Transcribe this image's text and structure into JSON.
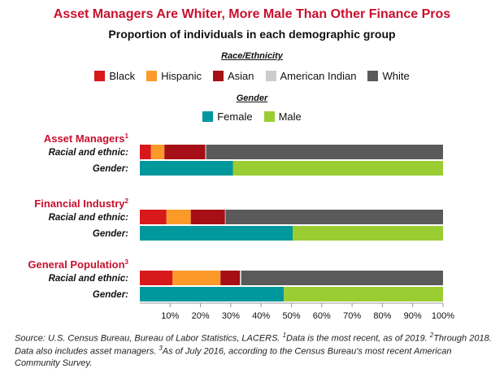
{
  "title": "Asset Managers Are Whiter, More Male Than Other Finance Pros",
  "subtitle": "Proportion of individuals in each demographic group",
  "legend_race_title": "Race/Ethnicity",
  "legend_gender_title": "Gender",
  "source_text": "Source: U.S. Census Bureau, Bureau of Labor Statistics, LACERS. ¹Data is the most recent, as of 2019. ²Through 2018. Data also includes asset managers. ³As of July 2016, according to the Census Bureau's most recent American Community Survey.",
  "chart_data": {
    "type": "bar",
    "stacked": true,
    "orientation": "horizontal",
    "xlim": [
      0,
      100
    ],
    "x_ticks": [
      "10%",
      "20%",
      "30%",
      "40%",
      "50%",
      "60%",
      "70%",
      "80%",
      "90%",
      "100%"
    ],
    "grid": false,
    "legend_position": "top",
    "race_series": [
      {
        "name": "Black",
        "color": "#d7191c"
      },
      {
        "name": "Hispanic",
        "color": "#fb9a29"
      },
      {
        "name": "Asian",
        "color": "#a50f15"
      },
      {
        "name": "American Indian",
        "color": "#cccccc"
      },
      {
        "name": "White",
        "color": "#5a5a5a"
      }
    ],
    "gender_series": [
      {
        "name": "Female",
        "color": "#00979d"
      },
      {
        "name": "Male",
        "color": "#9acd32"
      }
    ],
    "row_labels": {
      "race": "Racial and ethnic:",
      "gender": "Gender:"
    },
    "groups": [
      {
        "name": "Asset Managers",
        "sup": "1",
        "race": [
          3.7,
          4.4,
          13.5,
          0.3,
          78.1
        ],
        "gender": [
          30.7,
          69.3
        ]
      },
      {
        "name": "Financial Industry",
        "sup": "2",
        "race": [
          8.8,
          8.0,
          11.3,
          0.2,
          71.7
        ],
        "gender": [
          50.4,
          49.6
        ]
      },
      {
        "name": "General Population",
        "sup": "3",
        "race": [
          10.8,
          15.8,
          6.4,
          0.5,
          66.5
        ],
        "gender": [
          47.5,
          52.5
        ]
      }
    ]
  }
}
